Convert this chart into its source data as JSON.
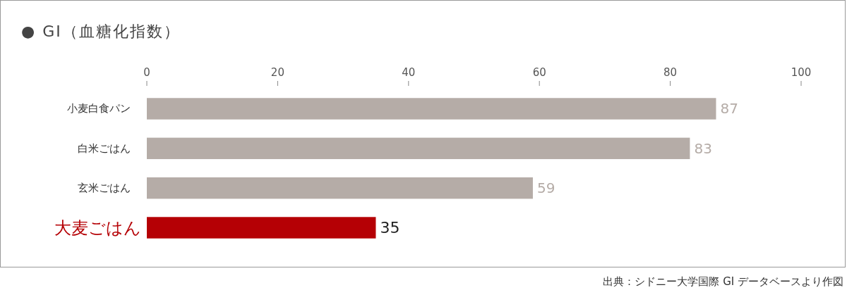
{
  "chart_data": {
    "type": "bar",
    "orientation": "horizontal",
    "title": "● GI（血糖化指数）",
    "categories": [
      "小麦白食パン",
      "白米ごはん",
      "玄米ごはん",
      "大麦ごはん"
    ],
    "values": [
      87,
      83,
      59,
      35
    ],
    "colors": [
      "#b5aca7",
      "#b5aca7",
      "#b5aca7",
      "#b50005"
    ],
    "xlim": [
      0,
      100
    ],
    "xticks": [
      0,
      20,
      40,
      60,
      80,
      100
    ],
    "data_labels": true,
    "annotations": [
      "出典：シドニー大学国際 GI データベースより作図"
    ]
  }
}
